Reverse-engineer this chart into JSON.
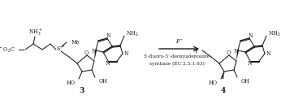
{
  "background_color": "#ffffff",
  "figure_width": 3.78,
  "figure_height": 1.23,
  "dpi": 100,
  "compound3_label": "3",
  "compound4_label": "4",
  "arrow_label_top": "F⁻",
  "arrow_label_bottom1": "5’-fluoro-5’-deoxyadenosine",
  "arrow_label_bottom2": "synthase (EC 2.5.1.63)",
  "text_color": "#1a1a1a",
  "line_color": "#1a1a1a",
  "fs": 5.0,
  "fs_label": 6.5,
  "lw": 0.75
}
